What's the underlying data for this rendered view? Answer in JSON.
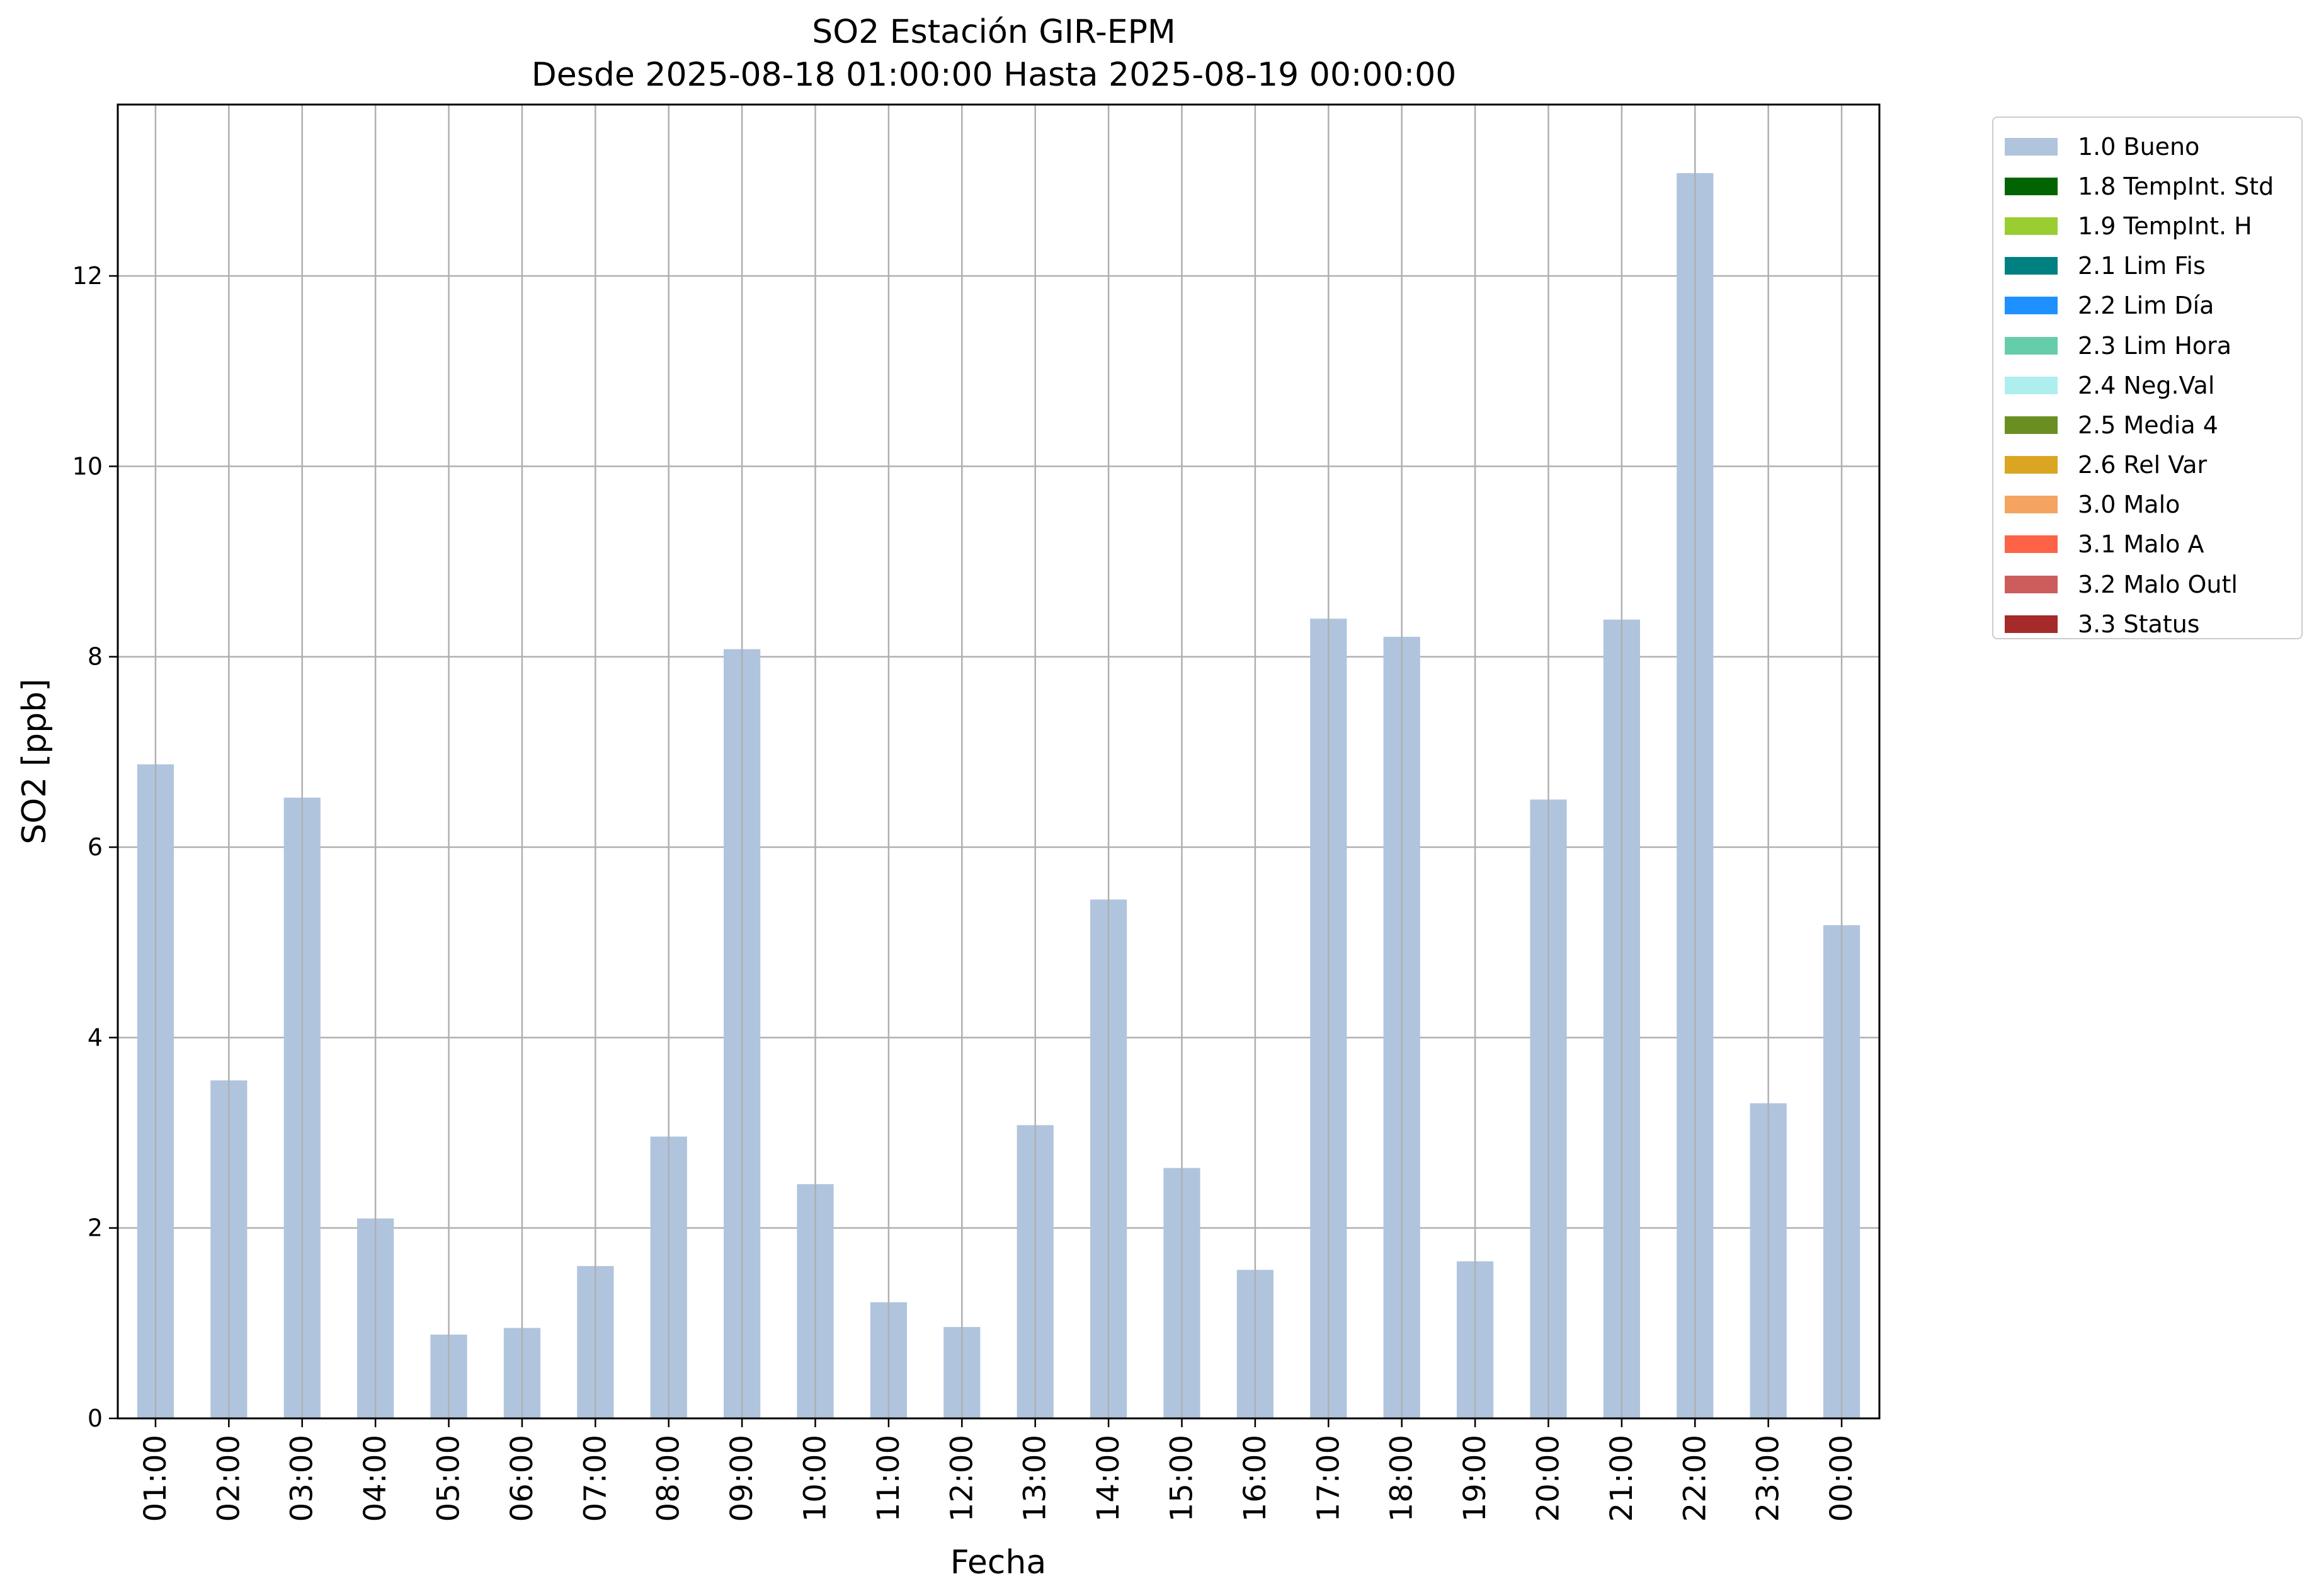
{
  "chart_data": {
    "type": "bar",
    "title": "SO2 Estación GIR-EPM",
    "subtitle": "Desde 2025-08-18 01:00:00 Hasta 2025-08-19 00:00:00",
    "xlabel": "Fecha",
    "ylabel": "SO2 [ppb]",
    "ylim": [
      0,
      13.8
    ],
    "yticks": [
      0,
      2,
      4,
      6,
      8,
      10,
      12
    ],
    "grid": true,
    "legend_position": "outside-top-right",
    "categories": [
      "01:00",
      "02:00",
      "03:00",
      "04:00",
      "05:00",
      "06:00",
      "07:00",
      "08:00",
      "09:00",
      "10:00",
      "11:00",
      "12:00",
      "13:00",
      "14:00",
      "15:00",
      "16:00",
      "17:00",
      "18:00",
      "19:00",
      "20:00",
      "21:00",
      "22:00",
      "23:00",
      "00:00"
    ],
    "series": [
      {
        "name": "1.0 Bueno",
        "color": "#b0c4de",
        "values": [
          6.87,
          3.55,
          6.52,
          2.1,
          0.88,
          0.95,
          1.6,
          2.96,
          8.08,
          2.46,
          1.22,
          0.96,
          3.08,
          5.45,
          2.63,
          1.56,
          8.4,
          8.21,
          1.65,
          6.5,
          8.39,
          13.08,
          3.31,
          5.18
        ]
      }
    ],
    "legend": [
      {
        "label": "1.0 Bueno",
        "color": "#b0c4de"
      },
      {
        "label": "1.8 TempInt. Std",
        "color": "#006400"
      },
      {
        "label": "1.9 TempInt. H",
        "color": "#9acd32"
      },
      {
        "label": "2.1 Lim Fis",
        "color": "#008080"
      },
      {
        "label": "2.2 Lim Día",
        "color": "#1e90ff"
      },
      {
        "label": "2.3 Lim Hora",
        "color": "#66cdaa"
      },
      {
        "label": "2.4 Neg.Val",
        "color": "#afeeee"
      },
      {
        "label": "2.5 Media 4",
        "color": "#6b8e23"
      },
      {
        "label": "2.6 Rel Var",
        "color": "#daa520"
      },
      {
        "label": "3.0 Malo",
        "color": "#f4a460"
      },
      {
        "label": "3.1 Malo A",
        "color": "#ff6347"
      },
      {
        "label": "3.2 Malo Outl",
        "color": "#cd5c5c"
      },
      {
        "label": "3.3 Status",
        "color": "#a52a2a"
      }
    ]
  }
}
